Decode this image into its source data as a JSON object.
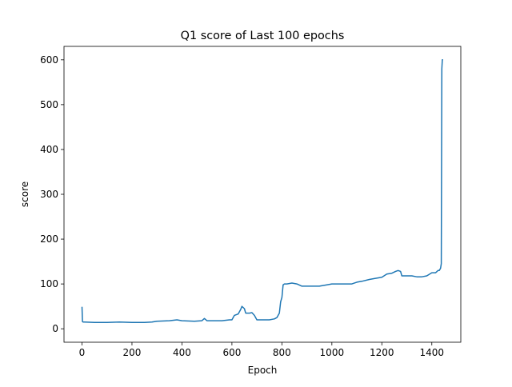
{
  "chart_data": {
    "type": "line",
    "title": "Q1 score of Last 100 epochs",
    "xlabel": "Epoch",
    "ylabel": "score",
    "xlim": [
      -72,
      1516
    ],
    "ylim": [
      -30,
      630
    ],
    "xticks": [
      0,
      200,
      400,
      600,
      800,
      1000,
      1200,
      1400
    ],
    "yticks": [
      0,
      100,
      200,
      300,
      400,
      500,
      600
    ],
    "grid": false,
    "legend": "none",
    "series": [
      {
        "color": "#1f77b4",
        "x": [
          0,
          2,
          5,
          10,
          50,
          100,
          150,
          200,
          250,
          280,
          300,
          350,
          380,
          400,
          450,
          480,
          490,
          500,
          530,
          560,
          590,
          600,
          610,
          625,
          635,
          640,
          650,
          655,
          670,
          680,
          690,
          700,
          720,
          750,
          770,
          780,
          790,
          795,
          800,
          805,
          810,
          820,
          840,
          860,
          880,
          900,
          950,
          980,
          1000,
          1020,
          1040,
          1060,
          1080,
          1100,
          1120,
          1150,
          1170,
          1200,
          1220,
          1240,
          1255,
          1265,
          1275,
          1280,
          1300,
          1320,
          1340,
          1360,
          1380,
          1400,
          1415,
          1425,
          1430,
          1435,
          1438,
          1440,
          1442,
          1445
        ],
        "y": [
          49,
          16,
          15,
          15,
          14,
          14,
          15,
          14,
          14,
          15,
          17,
          18,
          20,
          18,
          17,
          18,
          23,
          18,
          18,
          18,
          20,
          20,
          30,
          33,
          43,
          50,
          45,
          35,
          35,
          36,
          30,
          20,
          20,
          20,
          22,
          25,
          35,
          60,
          70,
          98,
          100,
          100,
          102,
          100,
          95,
          95,
          95,
          98,
          100,
          100,
          100,
          100,
          100,
          104,
          106,
          110,
          112,
          115,
          122,
          124,
          128,
          130,
          128,
          118,
          118,
          118,
          116,
          116,
          118,
          125,
          125,
          130,
          130,
          135,
          145,
          580,
          600,
          600
        ]
      }
    ]
  }
}
